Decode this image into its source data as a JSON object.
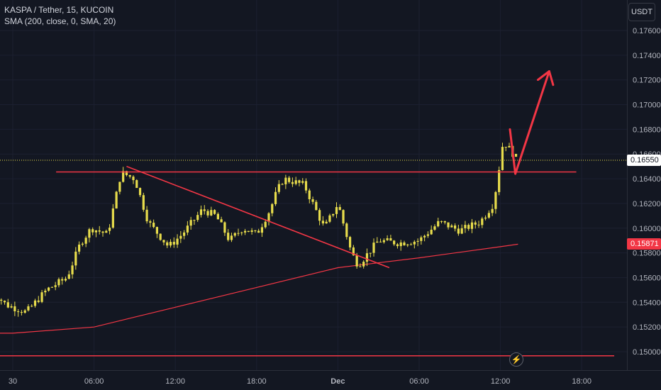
{
  "legend": {
    "title": "KASPA / Tether, 15, KUCOIN",
    "indicator": "SMA (200, close, 0, SMA, 20)"
  },
  "currency_button": "USDT",
  "price_tags": {
    "current": "0.16550",
    "sma": "0.15871"
  },
  "bolt_icon": "lightning-icon",
  "colors": {
    "background": "#131722",
    "candle": "#e8dd4c",
    "sma_line": "#f23645",
    "drawing": "#f23645",
    "axis_text": "#b2b5be"
  },
  "chart_data": {
    "type": "candlestick",
    "symbol": "KASPA / Tether, 15, KUCOIN",
    "ylim": [
      0.1493,
      0.1775
    ],
    "y_ticks": [
      "0.17600",
      "0.17400",
      "0.17200",
      "0.17000",
      "0.16800",
      "0.16600",
      "0.16400",
      "0.16200",
      "0.16000",
      "0.15800",
      "0.15600",
      "0.15400",
      "0.15200",
      "0.15000"
    ],
    "x_ticks": [
      "30",
      "06:00",
      "12:00",
      "18:00",
      "Dec",
      "06:00",
      "12:00",
      "18:00"
    ],
    "x_tick_hours": [
      0,
      6,
      12,
      18,
      24,
      30,
      36,
      42
    ],
    "hour_range": [
      -1.6,
      46.4
    ],
    "price_path": [
      [
        -1.6,
        0.155
      ],
      [
        -0.5,
        0.1538
      ],
      [
        1.0,
        0.1532
      ],
      [
        2.5,
        0.155
      ],
      [
        4.0,
        0.156
      ],
      [
        5.0,
        0.1588
      ],
      [
        5.8,
        0.16
      ],
      [
        7.0,
        0.1595
      ],
      [
        8.0,
        0.1645
      ],
      [
        9.0,
        0.164
      ],
      [
        10.0,
        0.1605
      ],
      [
        11.5,
        0.1585
      ],
      [
        12.5,
        0.1595
      ],
      [
        14.0,
        0.1615
      ],
      [
        15.0,
        0.161
      ],
      [
        16.0,
        0.159
      ],
      [
        17.0,
        0.16
      ],
      [
        18.0,
        0.1595
      ],
      [
        19.0,
        0.1615
      ],
      [
        19.5,
        0.163
      ],
      [
        20.0,
        0.164
      ],
      [
        21.5,
        0.1635
      ],
      [
        23.0,
        0.16
      ],
      [
        24.0,
        0.162
      ],
      [
        25.0,
        0.158
      ],
      [
        25.5,
        0.157
      ],
      [
        27.0,
        0.159
      ],
      [
        28.5,
        0.1588
      ],
      [
        30.0,
        0.159
      ],
      [
        31.5,
        0.1605
      ],
      [
        33.0,
        0.1598
      ],
      [
        34.5,
        0.1605
      ],
      [
        35.5,
        0.162
      ],
      [
        36.2,
        0.167
      ],
      [
        36.6,
        0.1665
      ],
      [
        37.3,
        0.1655
      ]
    ],
    "series": [
      {
        "name": "SMA (200, close, 0, SMA, 20)",
        "type": "line",
        "points": [
          [
            -1.6,
            0.1515
          ],
          [
            0,
            0.1515
          ],
          [
            6,
            0.152
          ],
          [
            9,
            0.1528
          ],
          [
            12,
            0.1536
          ],
          [
            18,
            0.1552
          ],
          [
            24,
            0.1568
          ],
          [
            30,
            0.1576
          ],
          [
            36,
            0.1585
          ],
          [
            37.3,
            0.1587
          ]
        ]
      }
    ],
    "drawings": [
      {
        "kind": "horizontal-line",
        "price": 0.16455,
        "from_hour": 3.2,
        "to_hour": 41.6
      },
      {
        "kind": "trend-line",
        "points": [
          [
            8.4,
            0.165
          ],
          [
            27.8,
            0.1568
          ]
        ]
      },
      {
        "kind": "horizontal-line",
        "price": 0.14967,
        "from_hour": -1.6,
        "to_hour": 44.4
      },
      {
        "kind": "arrow",
        "points": [
          [
            36.7,
            0.168
          ],
          [
            37.1,
            0.1644
          ],
          [
            39.6,
            0.1727
          ]
        ]
      }
    ],
    "current_price": 0.1655,
    "sma_last": 0.15871
  }
}
